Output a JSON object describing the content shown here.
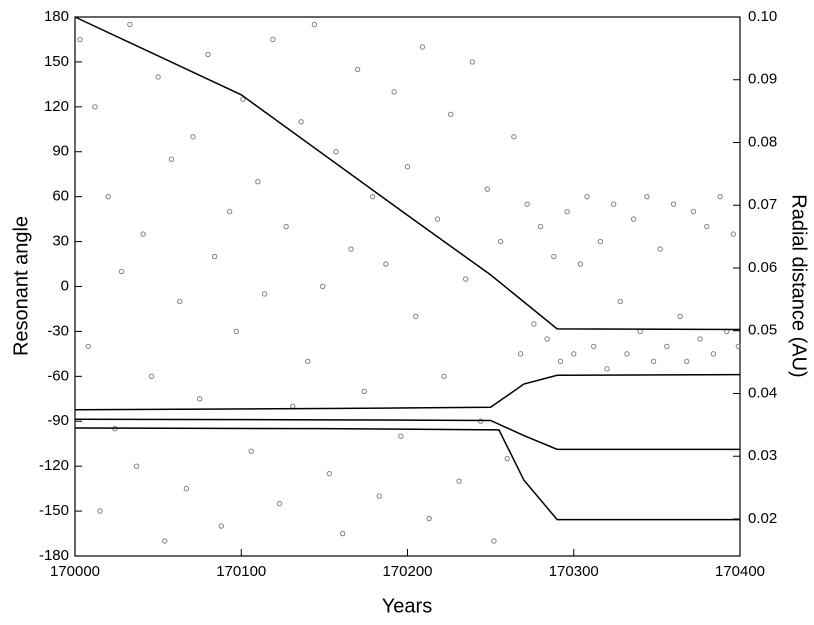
{
  "chart_data": {
    "type": "scatter",
    "xlabel": "Years",
    "ylabel": "Resonant angle",
    "y2label": "Radial distance (AU)",
    "xlim": [
      170000,
      170400
    ],
    "xticks": [
      170000,
      170100,
      170200,
      170300,
      170400
    ],
    "ylim": [
      -180,
      180
    ],
    "yticks": [
      -180,
      -150,
      -120,
      -90,
      -60,
      -30,
      0,
      30,
      60,
      90,
      120,
      150,
      180
    ],
    "y2lim": [
      0.0141,
      0.1
    ],
    "y2ticks": [
      0.02,
      0.03,
      0.04,
      0.05,
      0.06,
      0.07,
      0.08,
      0.09,
      {
        "value": 0.1,
        "label": "0.10"
      }
    ],
    "series": [
      {
        "type": "scatter",
        "color": "#808080",
        "x": [
          170003,
          170008,
          170012,
          170015,
          170020,
          170024,
          170028,
          170033,
          170037,
          170041,
          170046,
          170050,
          170054,
          170058,
          170063,
          170067,
          170071,
          170075,
          170080,
          170084,
          170088,
          170093,
          170097,
          170101,
          170106,
          170110,
          170114,
          170119,
          170123,
          170127,
          170131,
          170136,
          170140,
          170144,
          170149,
          170153,
          170157,
          170161,
          170166,
          170170,
          170174,
          170179,
          170183,
          170187,
          170192,
          170196,
          170200,
          170205,
          170209,
          170213,
          170218,
          170222,
          170226,
          170231,
          170235,
          170239,
          170244,
          170248,
          170252,
          170256,
          170260,
          170264,
          170268,
          170272,
          170276,
          170280,
          170284,
          170288,
          170292,
          170296,
          170300,
          170304,
          170308,
          170312,
          170316,
          170320,
          170324,
          170328,
          170332,
          170336,
          170340,
          170344,
          170348,
          170352,
          170356,
          170360,
          170364,
          170368,
          170372,
          170376,
          170380,
          170384,
          170388,
          170392,
          170396,
          170399
        ],
        "values": [
          165,
          -40,
          120,
          -150,
          60,
          -95,
          10,
          175,
          -120,
          35,
          -60,
          140,
          -170,
          85,
          -10,
          -135,
          100,
          -75,
          155,
          20,
          -160,
          50,
          -30,
          125,
          -110,
          70,
          -5,
          165,
          -145,
          40,
          -80,
          110,
          -50,
          175,
          0,
          -125,
          90,
          -165,
          25,
          145,
          -70,
          60,
          -140,
          15,
          130,
          -100,
          80,
          -20,
          160,
          -155,
          45,
          -60,
          115,
          -130,
          5,
          150,
          -90,
          65,
          -170,
          30,
          -115,
          100,
          -45,
          55,
          -25,
          40,
          -35,
          20,
          -50,
          50,
          -45,
          15,
          60,
          -40,
          30,
          -55,
          55,
          -10,
          -45,
          45,
          -30,
          60,
          -50,
          25,
          -40,
          55,
          -20,
          -50,
          50,
          -35,
          40,
          -45,
          60,
          -30,
          35,
          -40
        ]
      },
      {
        "type": "line",
        "axis": "y2",
        "color": "#000000",
        "x": [
          170000,
          170100,
          170200,
          170250,
          170290,
          170400
        ],
        "values": [
          0.1,
          0.0876,
          0.0684,
          0.0589,
          0.0503,
          0.0502
        ]
      },
      {
        "type": "line",
        "axis": "y2",
        "color": "#000000",
        "x": [
          170000,
          170150,
          170250,
          170270,
          170290,
          170400
        ],
        "values": [
          0.0374,
          0.0376,
          0.0378,
          0.0415,
          0.0429,
          0.043
        ]
      },
      {
        "type": "line",
        "axis": "y2",
        "color": "#000000",
        "x": [
          170000,
          170150,
          170250,
          170270,
          170290,
          170400
        ],
        "values": [
          0.0359,
          0.0358,
          0.0357,
          0.0333,
          0.0311,
          0.0311
        ]
      },
      {
        "type": "line",
        "axis": "y2",
        "color": "#000000",
        "x": [
          170000,
          170150,
          170255,
          170270,
          170290,
          170400
        ],
        "values": [
          0.0345,
          0.0344,
          0.0342,
          0.0262,
          0.0199,
          0.0199
        ]
      }
    ]
  }
}
